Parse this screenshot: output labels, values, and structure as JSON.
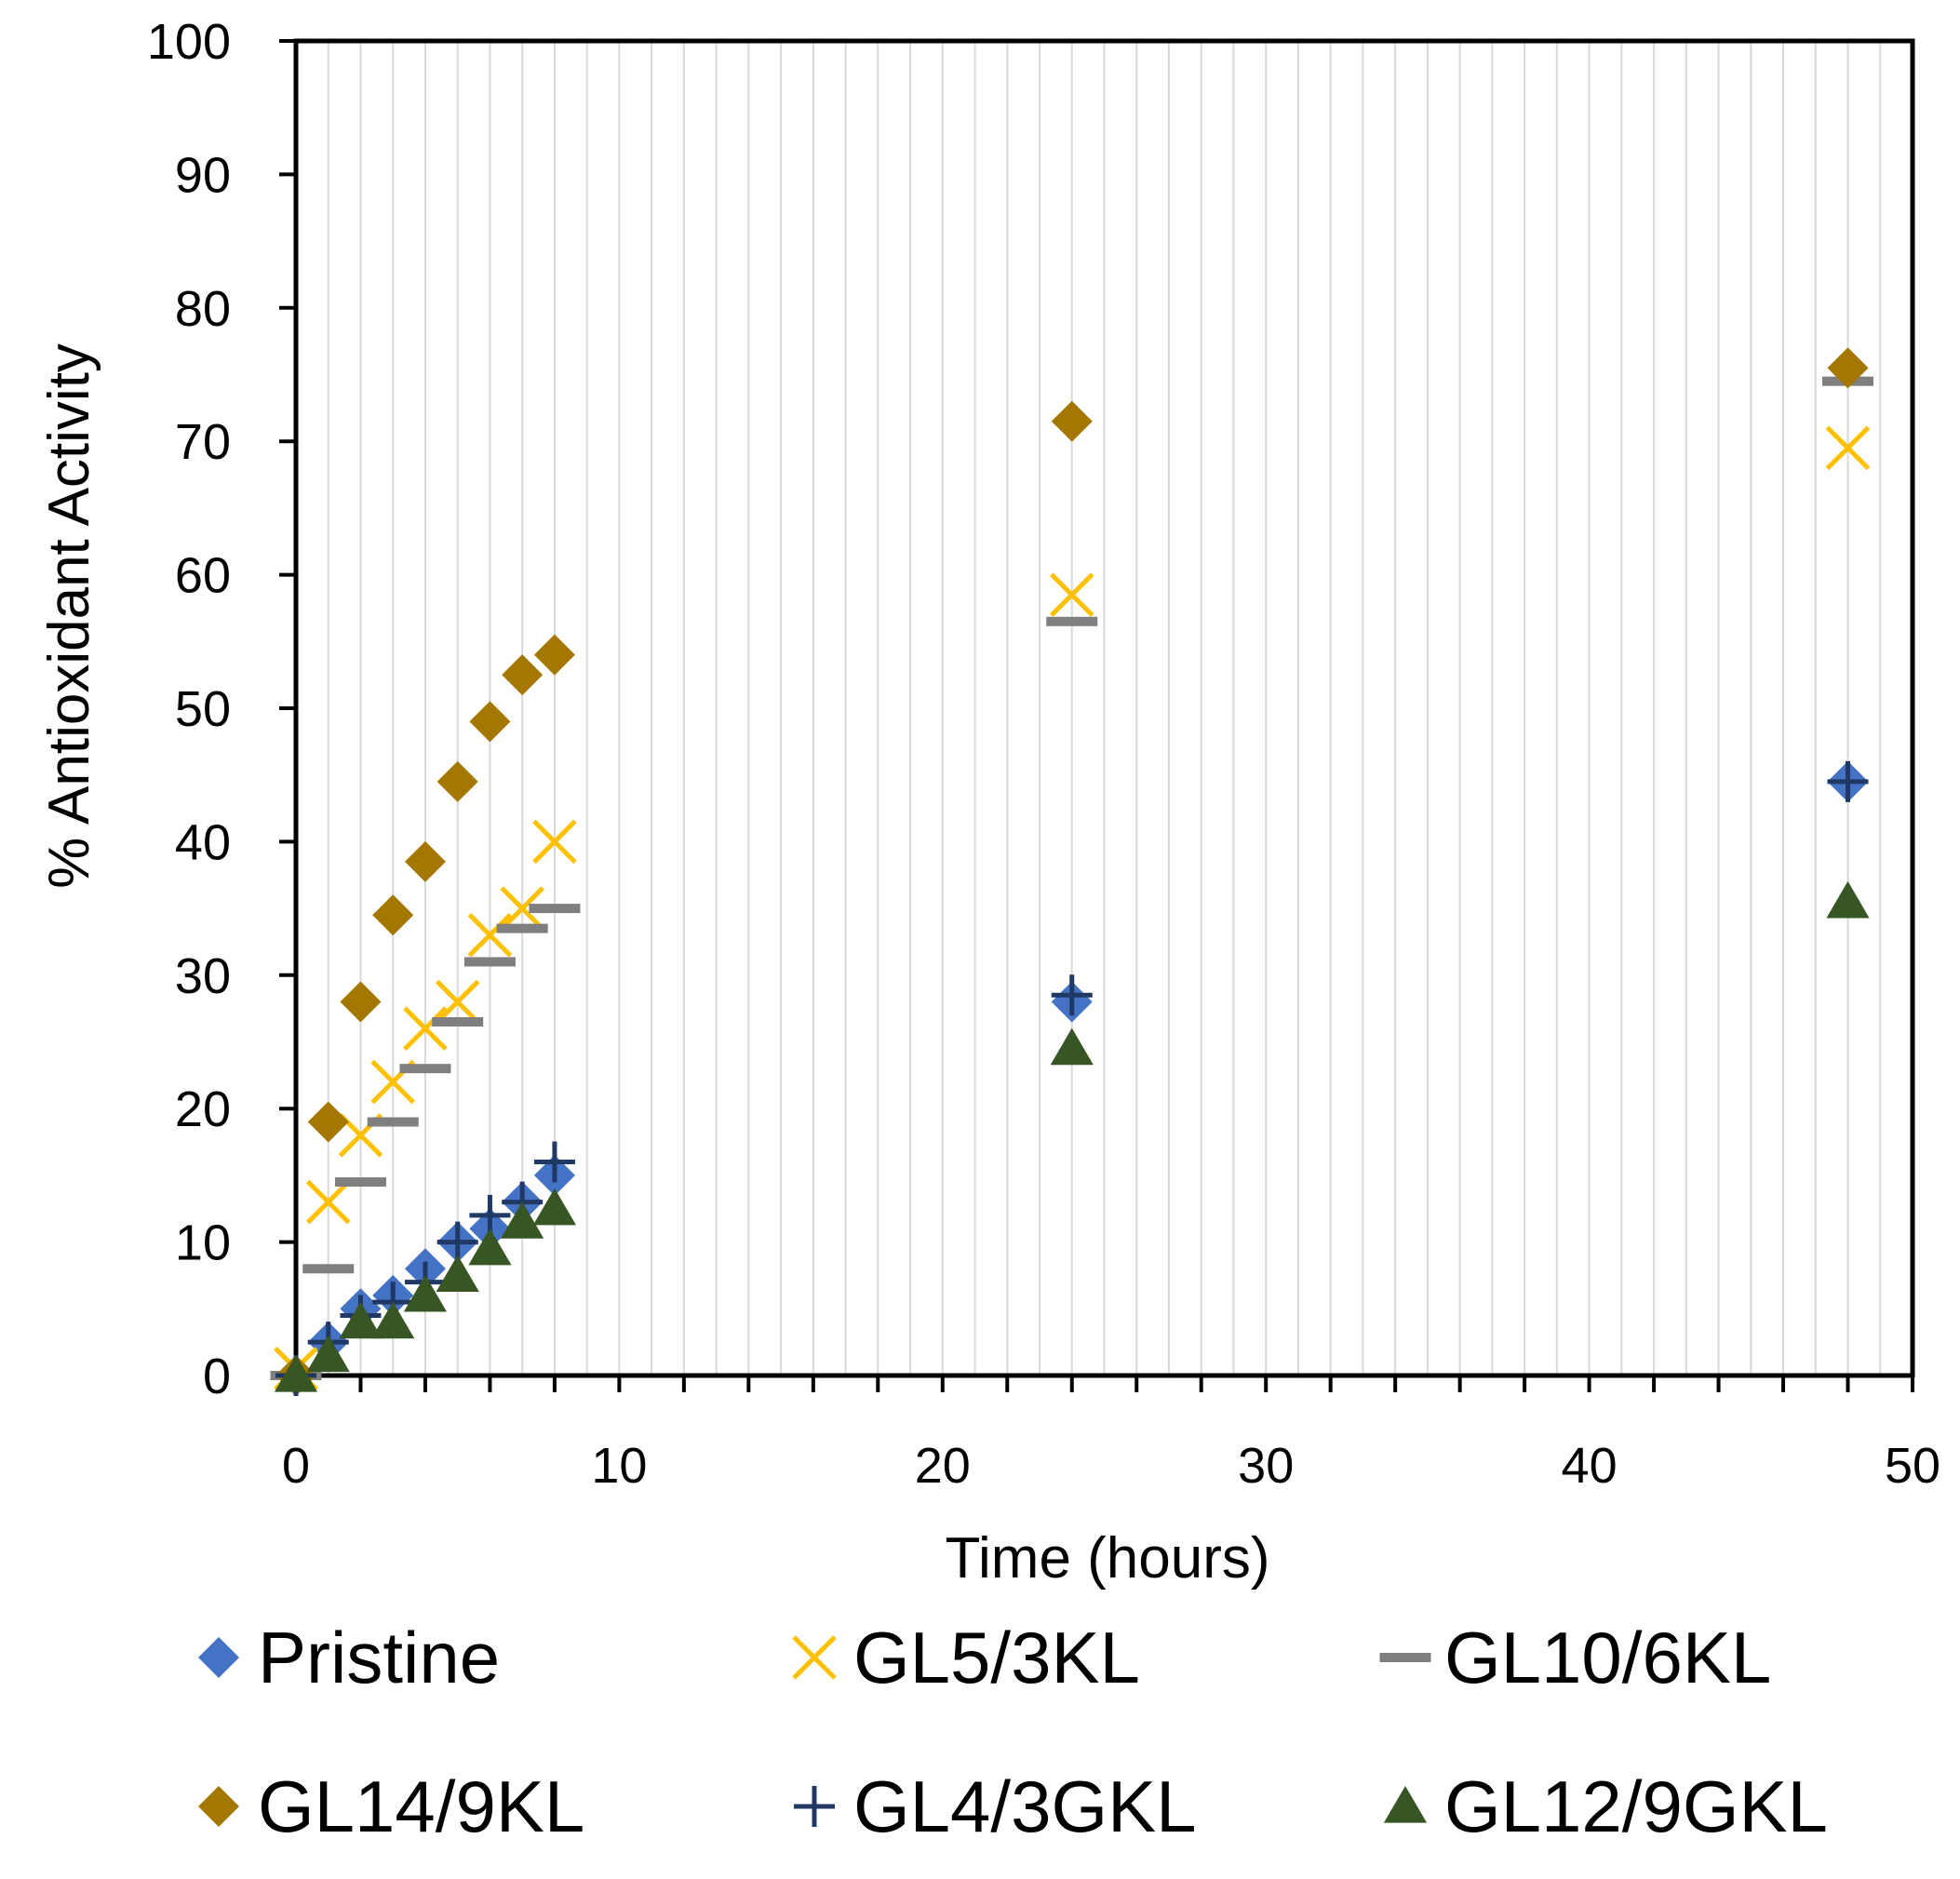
{
  "chart_data": {
    "type": "scatter",
    "title": "",
    "xlabel": "Time (hours)",
    "ylabel": "% Antioxidant Activity",
    "xlim": [
      0,
      50
    ],
    "ylim": [
      0,
      100
    ],
    "xticks": [
      "0",
      "10",
      "20",
      "30",
      "40",
      "50"
    ],
    "yticks": [
      "0",
      "10",
      "20",
      "30",
      "40",
      "50",
      "60",
      "70",
      "80",
      "90",
      "100"
    ],
    "grid": "vertical",
    "legend_position": "bottom",
    "series": [
      {
        "name": "Pristine",
        "marker": "diamond",
        "color": "#4472C4",
        "x": [
          0,
          1,
          2,
          3,
          4,
          5,
          6,
          7,
          8,
          24,
          48
        ],
        "y": [
          0,
          2.5,
          5,
          6,
          8,
          10,
          11,
          13,
          15,
          28,
          44.5
        ]
      },
      {
        "name": "GL5/3KL",
        "marker": "x",
        "color": "#FFC000",
        "x": [
          0,
          1,
          2,
          3,
          4,
          5,
          6,
          7,
          8,
          24,
          48
        ],
        "y": [
          0.5,
          13,
          18,
          22,
          26,
          28,
          33,
          35,
          40,
          58.5,
          69.5
        ]
      },
      {
        "name": "GL10/6KL",
        "marker": "dash",
        "color": "#7F7F7F",
        "x": [
          0,
          1,
          2,
          3,
          4,
          5,
          6,
          7,
          8,
          24,
          48
        ],
        "y": [
          0,
          8,
          14.5,
          19,
          23,
          26.5,
          31,
          33.5,
          35,
          56.5,
          74.5
        ]
      },
      {
        "name": "GL14/9KL",
        "marker": "diamond",
        "color": "#A47800",
        "x": [
          0,
          1,
          2,
          3,
          4,
          5,
          6,
          7,
          8,
          24,
          48
        ],
        "y": [
          0,
          19,
          28,
          34.5,
          38.5,
          44.5,
          49,
          52.5,
          54,
          71.5,
          75.5
        ]
      },
      {
        "name": "GL4/3GKL",
        "marker": "plus",
        "color": "#203864",
        "x": [
          0,
          1,
          2,
          3,
          4,
          5,
          6,
          7,
          8,
          24,
          48
        ],
        "y": [
          0,
          2.5,
          4.5,
          5.5,
          7,
          10,
          12,
          13,
          16,
          28.5,
          44.5
        ]
      },
      {
        "name": "GL12/9GKL",
        "marker": "triangle",
        "color": "#375623",
        "x": [
          0,
          1,
          2,
          3,
          4,
          5,
          6,
          7,
          8,
          24,
          48
        ],
        "y": [
          0,
          1.5,
          4,
          4,
          6,
          7.5,
          9.5,
          11.5,
          12.5,
          24.5,
          35.5
        ]
      }
    ]
  }
}
